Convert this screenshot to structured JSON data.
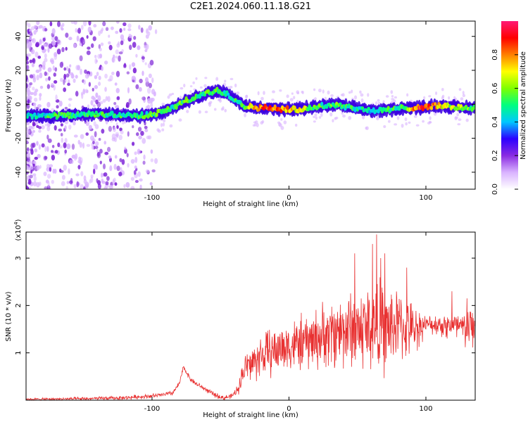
{
  "figure": {
    "title": "C2E1.2024.060.11.18.G21"
  },
  "colorbar": {
    "label": "Normalized spectral amplitude",
    "ticks": [
      "0.0",
      "0.2",
      "0.4",
      "0.6",
      "0.8"
    ],
    "tick_values": [
      0.0,
      0.2,
      0.4,
      0.6,
      0.8
    ],
    "range": [
      0,
      1
    ],
    "colors": [
      "#ffffff",
      "#d9b3ff",
      "#8a2be2",
      "#2b00ff",
      "#00c8ff",
      "#00ff80",
      "#7fff00",
      "#ffff00",
      "#ff8000",
      "#ff0000",
      "#ff1a75"
    ]
  },
  "chart_data": [
    {
      "type": "heatmap",
      "title": "",
      "xlabel": "Height of straight line (km)",
      "ylabel": "Frequency (Hz)",
      "xlim": [
        -192,
        136
      ],
      "ylim": [
        -50,
        49
      ],
      "xticks": [
        -100,
        0,
        100
      ],
      "xtick_labels": [
        "-100",
        "0",
        "100"
      ],
      "yticks": [
        -40,
        -20,
        0,
        20,
        40
      ],
      "ytick_labels": [
        "-40",
        "-20",
        "0",
        "20",
        "40"
      ],
      "ridge": {
        "x": [
          -192,
          -170,
          -150,
          -130,
          -110,
          -95,
          -85,
          -75,
          -65,
          -58,
          -52,
          -45,
          -38,
          -32,
          -25,
          -15,
          -5,
          5,
          15,
          25,
          35,
          45,
          55,
          65,
          75,
          85,
          95,
          105,
          115,
          125,
          136
        ],
        "y": [
          -7,
          -7,
          -6,
          -6,
          -7,
          -5,
          -2,
          2,
          5,
          7,
          8,
          6,
          2,
          -1,
          -2,
          -2,
          -3,
          -3,
          -2,
          -1,
          0,
          -2,
          -3,
          -4,
          -3,
          -2,
          -2,
          -1,
          -1,
          -2,
          -2
        ]
      },
      "ridge_amplitude": [
        0.45,
        0.5,
        0.5,
        0.5,
        0.5,
        0.55,
        0.5,
        0.55,
        0.5,
        0.6,
        0.55,
        0.5,
        0.5,
        0.55,
        0.8,
        0.85,
        0.8,
        0.7,
        0.6,
        0.5,
        0.55,
        0.5,
        0.45,
        0.45,
        0.5,
        0.55,
        0.9,
        0.8,
        0.65,
        0.6,
        0.55
      ]
    },
    {
      "type": "line",
      "title": "",
      "xlabel": "Height of straight line (km)",
      "ylabel": "SNR (10 * v/v)",
      "y_multiplier_label": "(x10",
      "y_multiplier_exp": "4",
      "y_multiplier_close": ")",
      "xlim": [
        -192,
        136
      ],
      "ylim": [
        0,
        3.55
      ],
      "xticks": [
        -100,
        0,
        100
      ],
      "xtick_labels": [
        "-100",
        "0",
        "100"
      ],
      "yticks": [
        1,
        2,
        3
      ],
      "ytick_labels": [
        "1",
        "2",
        "3"
      ],
      "color": "#e83030",
      "envelope": {
        "x": [
          -192,
          -150,
          -120,
          -95,
          -85,
          -80,
          -77,
          -75,
          -72,
          -68,
          -62,
          -55,
          -48,
          -42,
          -38,
          -35,
          -32,
          -28,
          -20,
          -10,
          0,
          10,
          20,
          30,
          40,
          50,
          60,
          65,
          70,
          75,
          80,
          85,
          90,
          95,
          100,
          110,
          120,
          128,
          136
        ],
        "y": [
          0.02,
          0.03,
          0.05,
          0.1,
          0.15,
          0.35,
          0.7,
          0.6,
          0.45,
          0.35,
          0.25,
          0.12,
          0.05,
          0.08,
          0.2,
          0.45,
          0.7,
          0.75,
          0.95,
          1.05,
          1.15,
          1.2,
          1.3,
          1.4,
          1.5,
          1.5,
          1.55,
          1.6,
          1.5,
          1.55,
          1.6,
          1.5,
          1.5,
          1.55,
          1.6,
          1.6,
          1.55,
          1.5,
          1.55
        ]
      },
      "spread": {
        "x": [
          -192,
          -80,
          -40,
          -30,
          -20,
          0,
          20,
          40,
          60,
          70,
          80,
          95,
          100,
          136
        ],
        "y": [
          0.02,
          0.05,
          0.05,
          0.35,
          0.45,
          0.5,
          0.6,
          0.75,
          0.9,
          0.9,
          0.7,
          0.4,
          0.15,
          0.45
        ]
      },
      "peaks": [
        {
          "x": 48,
          "y": 3.1
        },
        {
          "x": 61,
          "y": 3.3
        },
        {
          "x": 64,
          "y": 3.5
        },
        {
          "x": 67,
          "y": 3.0
        },
        {
          "x": 70,
          "y": 3.1
        },
        {
          "x": 86,
          "y": 2.8
        },
        {
          "x": 119,
          "y": 2.3
        },
        {
          "x": 130,
          "y": 2.15
        }
      ]
    }
  ]
}
